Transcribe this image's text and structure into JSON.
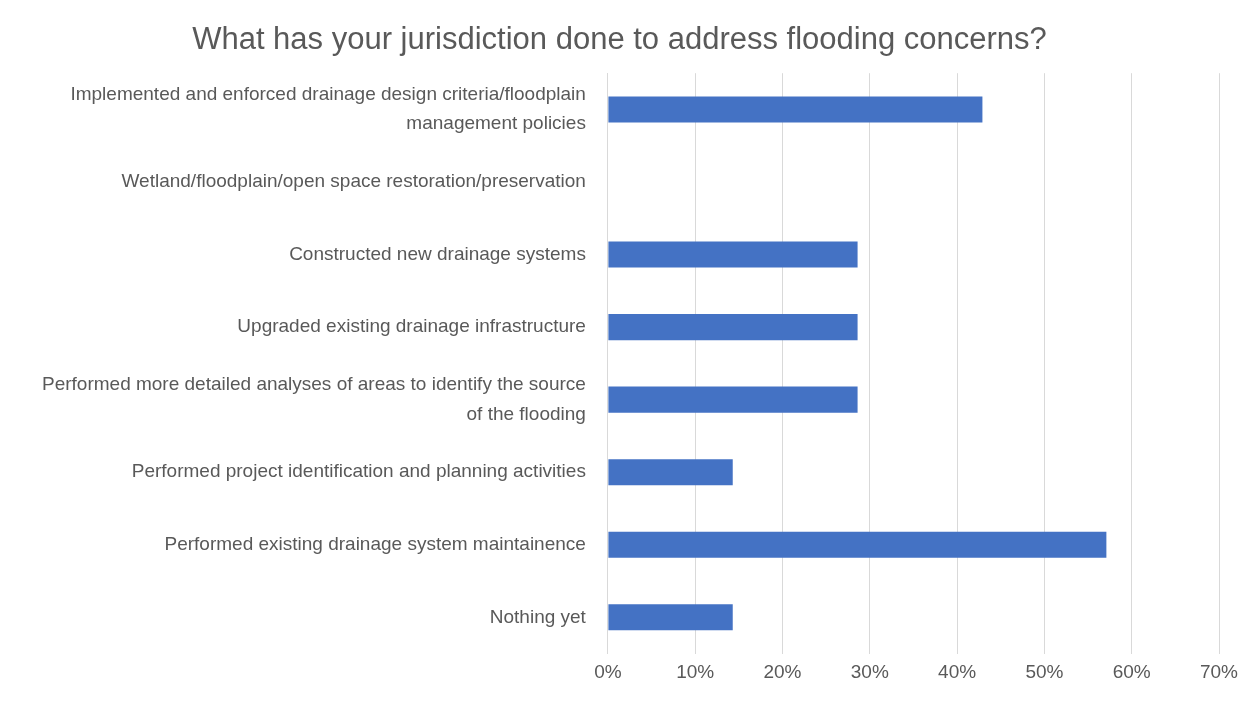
{
  "chart_data": {
    "type": "bar",
    "orientation": "horizontal",
    "title": "What has your jurisdiction done to address flooding concerns?",
    "categories": [
      "Implemented and enforced drainage design criteria/floodplain management policies",
      "Wetland/floodplain/open space restoration/preservation",
      "Constructed new drainage systems",
      "Upgraded existing drainage infrastructure",
      "Performed more detailed analyses of areas to identify the source of the flooding",
      "Performed project identification and planning activities",
      "Performed existing drainage system maintainence",
      "Nothing yet"
    ],
    "values": [
      42.9,
      0,
      28.6,
      28.6,
      28.6,
      14.3,
      57.1,
      14.3
    ],
    "color": "#4472c4",
    "xlim": [
      0,
      70
    ],
    "xticks": [
      {
        "value": 0,
        "label": "0%"
      },
      {
        "value": 10,
        "label": "10%"
      },
      {
        "value": 20,
        "label": "20%"
      },
      {
        "value": 30,
        "label": "30%"
      },
      {
        "value": 40,
        "label": "40%"
      },
      {
        "value": 50,
        "label": "50%"
      },
      {
        "value": 60,
        "label": "60%"
      },
      {
        "value": 70,
        "label": "70%"
      }
    ],
    "grid": "x",
    "legend": false
  }
}
